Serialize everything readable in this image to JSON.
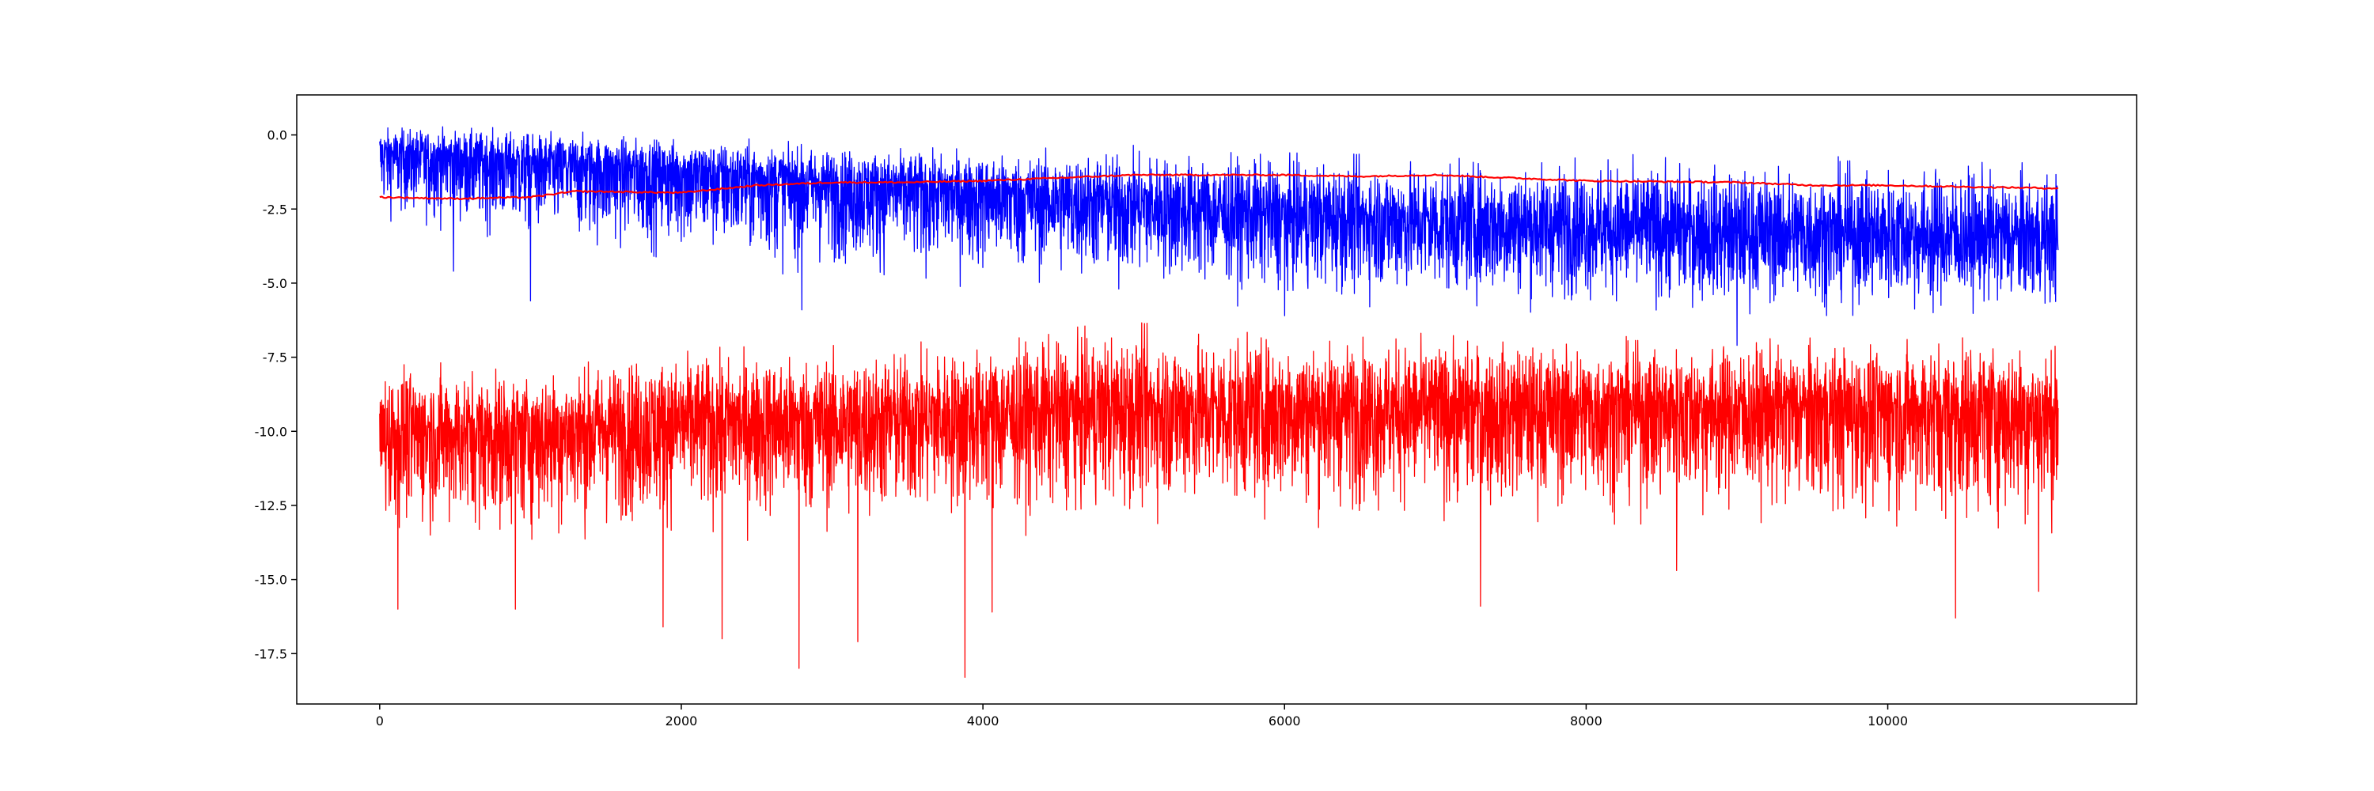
{
  "chart_data": {
    "type": "line",
    "title": "",
    "xlabel": "",
    "ylabel": "",
    "xlim": [
      -550,
      11650
    ],
    "ylim": [
      -19.2,
      1.35
    ],
    "grid": false,
    "legend": "none",
    "x_ticks": [
      0,
      2000,
      4000,
      6000,
      8000,
      10000
    ],
    "x_tick_labels": [
      "0",
      "2000",
      "4000",
      "6000",
      "8000",
      "10000"
    ],
    "y_ticks": [
      0.0,
      -2.5,
      -5.0,
      -7.5,
      -10.0,
      -12.5,
      -15.0,
      -17.5
    ],
    "y_tick_labels": [
      "0.0",
      "-2.5",
      "-5.0",
      "-7.5",
      "-10.0",
      "-12.5",
      "-15.0",
      "-17.5"
    ],
    "n_points": 11130,
    "series": [
      {
        "color": "#0000ff",
        "style": "noisy",
        "x_range": [
          0,
          11130
        ],
        "mean_knots": [
          [
            0,
            -0.6
          ],
          [
            1000,
            -0.9
          ],
          [
            2000,
            -1.2
          ],
          [
            3000,
            -1.6
          ],
          [
            4000,
            -1.9
          ],
          [
            5000,
            -2.3
          ],
          [
            6000,
            -2.7
          ],
          [
            7000,
            -2.9
          ],
          [
            8000,
            -3.1
          ],
          [
            9000,
            -3.3
          ],
          [
            10000,
            -3.4
          ],
          [
            11130,
            -3.5
          ]
        ],
        "upper_envelope": [
          [
            0,
            0.35
          ],
          [
            300,
            0.35
          ],
          [
            1000,
            0.2
          ],
          [
            2000,
            0.0
          ],
          [
            3000,
            -0.3
          ],
          [
            4000,
            -0.5
          ],
          [
            5000,
            -0.35
          ],
          [
            6000,
            -0.6
          ],
          [
            7000,
            -0.7
          ],
          [
            8000,
            -0.6
          ],
          [
            9000,
            -0.8
          ],
          [
            10000,
            -0.7
          ],
          [
            11130,
            -1.0
          ]
        ],
        "lower_envelope": [
          [
            0,
            -2.8
          ],
          [
            1000,
            -3.8
          ],
          [
            2000,
            -4.3
          ],
          [
            3000,
            -4.8
          ],
          [
            4000,
            -5.0
          ],
          [
            5000,
            -5.2
          ],
          [
            6000,
            -5.6
          ],
          [
            7000,
            -5.8
          ],
          [
            8000,
            -5.8
          ],
          [
            9000,
            -6.0
          ],
          [
            10000,
            -6.0
          ],
          [
            11130,
            -6.0
          ]
        ],
        "spikes_low": [
          [
            490,
            -4.6
          ],
          [
            1000,
            -5.6
          ],
          [
            2800,
            -5.9
          ],
          [
            4900,
            -5.2
          ],
          [
            6000,
            -6.1
          ],
          [
            9000,
            -7.1
          ],
          [
            10300,
            -6.0
          ]
        ]
      },
      {
        "color": "#ff0000",
        "style": "noisy",
        "x_range": [
          0,
          11130
        ],
        "mean_knots": [
          [
            0,
            -10.0
          ],
          [
            1000,
            -10.0
          ],
          [
            2000,
            -9.6
          ],
          [
            3000,
            -9.6
          ],
          [
            4000,
            -9.4
          ],
          [
            5000,
            -9.2
          ],
          [
            6000,
            -9.2
          ],
          [
            7000,
            -9.2
          ],
          [
            8000,
            -9.2
          ],
          [
            9000,
            -9.2
          ],
          [
            10000,
            -9.2
          ],
          [
            11130,
            -9.3
          ]
        ],
        "upper_envelope": [
          [
            0,
            -7.5
          ],
          [
            1000,
            -7.8
          ],
          [
            1800,
            -7.2
          ],
          [
            3000,
            -7.1
          ],
          [
            4000,
            -6.9
          ],
          [
            4900,
            -6.3
          ],
          [
            6000,
            -6.6
          ],
          [
            7000,
            -6.7
          ],
          [
            8000,
            -6.8
          ],
          [
            9000,
            -6.8
          ],
          [
            10000,
            -6.9
          ],
          [
            10600,
            -6.6
          ],
          [
            11130,
            -7.0
          ]
        ],
        "lower_envelope": [
          [
            0,
            -13.5
          ],
          [
            1000,
            -13.8
          ],
          [
            2000,
            -13.5
          ],
          [
            3000,
            -13.5
          ],
          [
            4000,
            -13.3
          ],
          [
            5000,
            -13.0
          ],
          [
            6000,
            -13.0
          ],
          [
            7000,
            -13.0
          ],
          [
            8000,
            -13.0
          ],
          [
            9000,
            -13.0
          ],
          [
            10000,
            -13.3
          ],
          [
            11130,
            -13.5
          ]
        ],
        "spikes_low": [
          [
            120,
            -16.0
          ],
          [
            900,
            -16.0
          ],
          [
            1880,
            -16.6
          ],
          [
            2270,
            -17.0
          ],
          [
            2780,
            -18.0
          ],
          [
            3170,
            -17.1
          ],
          [
            3880,
            -18.3
          ],
          [
            4060,
            -16.1
          ],
          [
            7300,
            -15.9
          ],
          [
            8600,
            -14.7
          ],
          [
            10450,
            -16.3
          ],
          [
            11000,
            -15.4
          ]
        ]
      },
      {
        "color": "#ff0000",
        "style": "smooth",
        "knots": [
          [
            0,
            -2.1
          ],
          [
            500,
            -2.15
          ],
          [
            1000,
            -2.1
          ],
          [
            1300,
            -1.9
          ],
          [
            2000,
            -1.95
          ],
          [
            2500,
            -1.7
          ],
          [
            3000,
            -1.6
          ],
          [
            3500,
            -1.6
          ],
          [
            4000,
            -1.55
          ],
          [
            5000,
            -1.35
          ],
          [
            6000,
            -1.35
          ],
          [
            6500,
            -1.4
          ],
          [
            7000,
            -1.35
          ],
          [
            7500,
            -1.45
          ],
          [
            8000,
            -1.55
          ],
          [
            9000,
            -1.6
          ],
          [
            9500,
            -1.7
          ],
          [
            10000,
            -1.7
          ],
          [
            10500,
            -1.75
          ],
          [
            11130,
            -1.8
          ]
        ]
      }
    ]
  }
}
